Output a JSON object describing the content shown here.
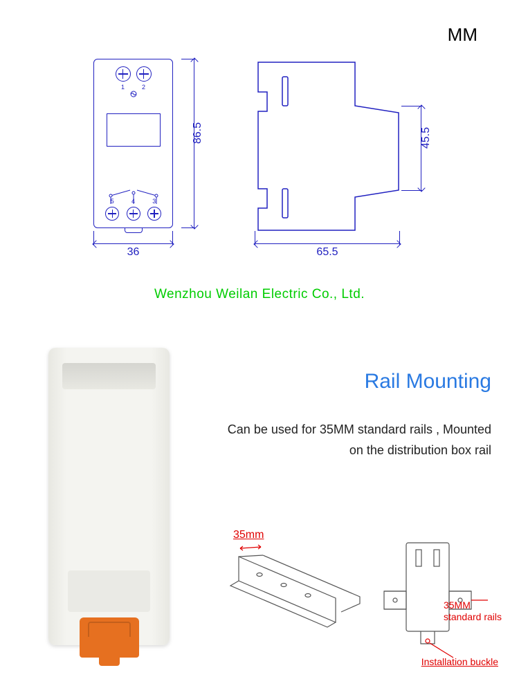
{
  "unit": "MM",
  "front_view": {
    "height_mm": "86.5",
    "width_mm": "36",
    "top_terminals": [
      "1",
      "2"
    ],
    "top_symbol": "~",
    "bottom_terminals": [
      "5",
      "4",
      "3"
    ]
  },
  "side_view": {
    "depth_mm": "65.5",
    "rail_height_mm": "45.5"
  },
  "company": "Wenzhou Weilan Electric Co., Ltd.",
  "section": {
    "title": "Rail Mounting",
    "description": "Can be used for 35MM standard rails , Mounted on the distribution box rail"
  },
  "rail": {
    "width_label": "35mm",
    "std_label": "35MM\nstandard rails",
    "buckle_label": "Installation buckle"
  },
  "colors": {
    "line": "#2020c0",
    "accent_text": "#00cc00",
    "title": "#2a7ae2",
    "callout": "#e00000",
    "clip": "#e67020",
    "body": "#f4f4f0"
  },
  "fontsizes": {
    "unit": 26,
    "dim": 16,
    "company": 19,
    "title": 30,
    "desc": 18,
    "callout": 14
  }
}
